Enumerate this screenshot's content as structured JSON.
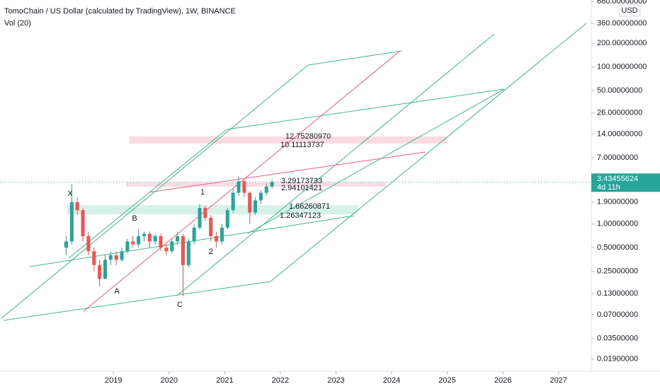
{
  "chart_data": {
    "type": "candlestick",
    "title": "TomoChain / US Dollar (calculated by TradingView), 1W, BINANCE",
    "subtitle": "Vol (20)",
    "currency": "USD",
    "log_scale": true,
    "up_color": "#26a69a",
    "down_color": "#ef5350",
    "x": [
      2018.15,
      2018.25,
      2018.35,
      2018.45,
      2018.55,
      2018.65,
      2018.75,
      2018.85,
      2018.95,
      2019.05,
      2019.15,
      2019.25,
      2019.35,
      2019.45,
      2019.55,
      2019.65,
      2019.75,
      2019.85,
      2019.95,
      2020.05,
      2020.15,
      2020.25,
      2020.35,
      2020.45,
      2020.55,
      2020.65,
      2020.75,
      2020.85,
      2020.95,
      2021.05,
      2021.15,
      2021.25,
      2021.35,
      2021.45,
      2021.55,
      2021.65,
      2021.75,
      2021.85
    ],
    "open": [
      0.5,
      0.6,
      1.9,
      1.5,
      0.7,
      0.45,
      0.3,
      0.2,
      0.35,
      0.4,
      0.35,
      0.45,
      0.6,
      0.55,
      0.7,
      0.75,
      0.6,
      0.7,
      0.5,
      0.45,
      0.6,
      0.7,
      0.3,
      0.6,
      0.9,
      1.6,
      1.2,
      0.7,
      0.6,
      0.9,
      1.5,
      2.5,
      3.5,
      2.5,
      1.4,
      2.0,
      2.5,
      3.0
    ],
    "high": [
      0.7,
      3.2,
      2.2,
      1.6,
      0.8,
      0.5,
      0.35,
      0.4,
      0.45,
      0.45,
      0.5,
      0.65,
      0.7,
      0.85,
      0.8,
      0.8,
      0.75,
      0.75,
      0.55,
      0.65,
      0.8,
      0.75,
      0.65,
      1.0,
      1.8,
      1.7,
      1.3,
      0.8,
      1.0,
      1.6,
      2.8,
      4.0,
      3.6,
      2.6,
      2.2,
      2.7,
      3.3,
      3.7
    ],
    "low": [
      0.4,
      0.55,
      1.3,
      0.6,
      0.4,
      0.25,
      0.16,
      0.2,
      0.3,
      0.3,
      0.33,
      0.42,
      0.5,
      0.5,
      0.6,
      0.5,
      0.55,
      0.45,
      0.4,
      0.42,
      0.55,
      0.12,
      0.28,
      0.55,
      0.85,
      1.1,
      0.6,
      0.5,
      0.55,
      0.85,
      1.4,
      2.3,
      2.2,
      1.0,
      1.3,
      1.8,
      2.3,
      2.8
    ],
    "close": [
      0.6,
      1.9,
      1.5,
      0.7,
      0.45,
      0.3,
      0.2,
      0.35,
      0.4,
      0.35,
      0.45,
      0.6,
      0.55,
      0.7,
      0.75,
      0.6,
      0.7,
      0.5,
      0.45,
      0.6,
      0.7,
      0.3,
      0.6,
      0.9,
      1.6,
      1.2,
      0.7,
      0.6,
      0.9,
      1.5,
      2.5,
      3.5,
      2.5,
      1.4,
      2.0,
      2.5,
      3.0,
      3.43
    ],
    "xlim": [
      2016.96,
      2027.59
    ],
    "xticks": [
      2019,
      2020,
      2021,
      2022,
      2023,
      2024,
      2025,
      2026,
      2027
    ],
    "ylim": [
      0.0133,
      713
    ],
    "yticks": [
      {
        "value": 680,
        "label": "680.00000000"
      },
      {
        "value": 360,
        "label": "360.00000000"
      },
      {
        "value": 200,
        "label": "200.00000000"
      },
      {
        "value": 100,
        "label": "100.00000000"
      },
      {
        "value": 50,
        "label": "50.00000000"
      },
      {
        "value": 26,
        "label": "26.00000000"
      },
      {
        "value": 14,
        "label": "14.00000000"
      },
      {
        "value": 7,
        "label": "7.00000000"
      },
      {
        "value": 1.9,
        "label": "1.90000000"
      },
      {
        "value": 1,
        "label": "1.00000000"
      },
      {
        "value": 0.5,
        "label": "0.50000000"
      },
      {
        "value": 0.25,
        "label": "0.25000000"
      },
      {
        "value": 0.13,
        "label": "0.13000000"
      },
      {
        "value": 0.07,
        "label": "0.07000000"
      },
      {
        "value": 0.035,
        "label": "0.03500000"
      },
      {
        "value": 0.019,
        "label": "0.01900000"
      }
    ],
    "last_price": {
      "value": 3.43455624,
      "label": "3.43455624",
      "countdown": "4d 11h"
    },
    "annotations": [
      "X",
      "A",
      "B",
      "C",
      "1",
      "2",
      "12.75280970",
      "10.11113737",
      "3.29173733",
      "2.94101421",
      "1.66260871",
      "1.26347123"
    ]
  }
}
